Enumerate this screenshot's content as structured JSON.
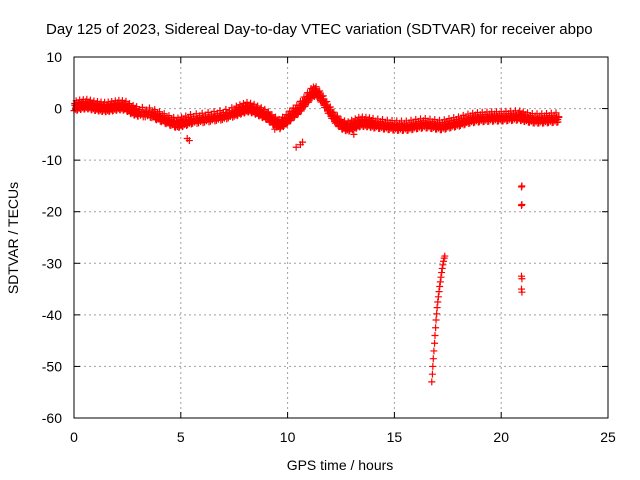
{
  "chart_data": {
    "type": "scatter",
    "title": "Day 125 of 2023, Sidereal Day-to-day VTEC variation (SDTVAR) for receiver abpo",
    "xlabel": "GPS time / hours",
    "ylabel": "SDTVAR / TECUs",
    "xlim": [
      0,
      25
    ],
    "ylim": [
      -60,
      10
    ],
    "x_ticks": [
      0,
      5,
      10,
      15,
      20,
      25
    ],
    "y_ticks": [
      10,
      0,
      -10,
      -20,
      -30,
      -40,
      -50,
      -60
    ],
    "grid": true,
    "marker": "+",
    "color": "#ff0000",
    "series": [
      {
        "name": "SDTVAR",
        "main_trace": [
          [
            0.0,
            0.5
          ],
          [
            0.3,
            0.8
          ],
          [
            0.6,
            0.9
          ],
          [
            0.9,
            0.6
          ],
          [
            1.2,
            0.4
          ],
          [
            1.5,
            0.3
          ],
          [
            1.8,
            0.5
          ],
          [
            2.1,
            0.7
          ],
          [
            2.4,
            0.6
          ],
          [
            2.7,
            -0.2
          ],
          [
            3.0,
            -0.6
          ],
          [
            3.6,
            -0.8
          ],
          [
            4.0,
            -1.5
          ],
          [
            4.4,
            -2.2
          ],
          [
            4.8,
            -2.8
          ],
          [
            5.1,
            -2.5
          ],
          [
            5.5,
            -2.0
          ],
          [
            6.0,
            -1.8
          ],
          [
            6.5,
            -1.5
          ],
          [
            7.0,
            -1.2
          ],
          [
            7.5,
            -0.6
          ],
          [
            7.8,
            -0.1
          ],
          [
            8.1,
            0.3
          ],
          [
            8.4,
            0.0
          ],
          [
            8.7,
            -0.6
          ],
          [
            9.0,
            -1.2
          ],
          [
            9.3,
            -2.2
          ],
          [
            9.6,
            -3.0
          ],
          [
            9.9,
            -2.2
          ],
          [
            10.2,
            -1.0
          ],
          [
            10.5,
            0.0
          ],
          [
            10.8,
            1.5
          ],
          [
            11.1,
            3.0
          ],
          [
            11.3,
            3.5
          ],
          [
            11.6,
            2.0
          ],
          [
            11.9,
            0.0
          ],
          [
            12.2,
            -1.8
          ],
          [
            12.5,
            -3.0
          ],
          [
            12.8,
            -3.5
          ],
          [
            13.1,
            -3.0
          ],
          [
            13.4,
            -2.5
          ],
          [
            13.7,
            -2.6
          ],
          [
            14.0,
            -2.8
          ],
          [
            14.4,
            -3.0
          ],
          [
            14.8,
            -3.2
          ],
          [
            15.2,
            -3.3
          ],
          [
            15.6,
            -3.3
          ],
          [
            16.0,
            -3.0
          ],
          [
            16.4,
            -2.8
          ],
          [
            16.8,
            -3.0
          ],
          [
            17.2,
            -3.2
          ],
          [
            17.6,
            -2.8
          ],
          [
            18.0,
            -2.5
          ],
          [
            18.4,
            -2.0
          ],
          [
            18.8,
            -1.7
          ],
          [
            19.2,
            -1.6
          ],
          [
            19.6,
            -1.5
          ],
          [
            20.0,
            -1.5
          ],
          [
            20.4,
            -1.4
          ],
          [
            20.8,
            -1.3
          ],
          [
            21.1,
            -1.6
          ],
          [
            21.5,
            -1.9
          ],
          [
            21.9,
            -1.9
          ],
          [
            22.3,
            -1.8
          ],
          [
            22.7,
            -1.7
          ]
        ],
        "isolated_points": [
          [
            0.5,
            0.0
          ],
          [
            2.9,
            -0.8
          ],
          [
            5.3,
            -5.8
          ],
          [
            5.4,
            -6.2
          ],
          [
            10.4,
            -7.5
          ],
          [
            10.6,
            -7.0
          ],
          [
            10.7,
            -6.5
          ],
          [
            13.1,
            -5.0
          ],
          [
            9.4,
            -4.0
          ]
        ],
        "spike_near_17h": [
          [
            16.75,
            -53.0
          ],
          [
            16.78,
            -51.5
          ],
          [
            16.8,
            -50.0
          ],
          [
            16.82,
            -48.5
          ],
          [
            16.85,
            -47.0
          ],
          [
            16.88,
            -45.5
          ],
          [
            16.9,
            -44.0
          ],
          [
            16.93,
            -42.5
          ],
          [
            16.95,
            -41.0
          ],
          [
            16.98,
            -39.8
          ],
          [
            17.0,
            -38.6
          ],
          [
            17.03,
            -37.5
          ],
          [
            17.06,
            -36.5
          ],
          [
            17.09,
            -35.5
          ],
          [
            17.12,
            -34.5
          ],
          [
            17.15,
            -33.6
          ],
          [
            17.18,
            -32.7
          ],
          [
            17.21,
            -31.8
          ],
          [
            17.24,
            -31.0
          ],
          [
            17.27,
            -30.3
          ],
          [
            17.3,
            -29.6
          ],
          [
            17.33,
            -29.0
          ],
          [
            17.36,
            -28.6
          ]
        ],
        "spike_near_21h": [
          [
            20.95,
            -15.2
          ],
          [
            20.97,
            -15.0
          ],
          [
            20.95,
            -18.8
          ],
          [
            20.97,
            -18.6
          ],
          [
            20.95,
            -32.5
          ],
          [
            20.97,
            -33.0
          ],
          [
            20.95,
            -35.0
          ],
          [
            20.97,
            -35.6
          ]
        ]
      }
    ]
  }
}
